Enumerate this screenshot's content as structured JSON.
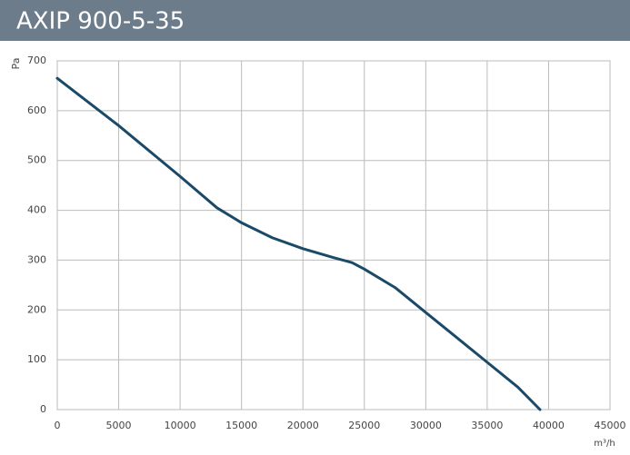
{
  "chart_data": {
    "type": "line",
    "title": "AXIP 900-5-35",
    "x_label": "m³/h",
    "y_label": "Pa",
    "x": [
      0,
      5000,
      10000,
      13000,
      15000,
      17500,
      20000,
      22500,
      24000,
      25000,
      27500,
      30000,
      32500,
      35000,
      37500,
      39300
    ],
    "values": [
      665,
      570,
      468,
      405,
      375,
      345,
      323,
      305,
      295,
      282,
      245,
      195,
      145,
      95,
      45,
      0
    ],
    "color": "#1b4a68",
    "xlim": [
      0,
      45000
    ],
    "xticks": [
      0,
      5000,
      10000,
      15000,
      20000,
      25000,
      30000,
      35000,
      40000,
      45000
    ],
    "ylim": [
      0,
      700
    ],
    "yticks": [
      0,
      100,
      200,
      300,
      400,
      500,
      600,
      700
    ],
    "grid": true
  }
}
